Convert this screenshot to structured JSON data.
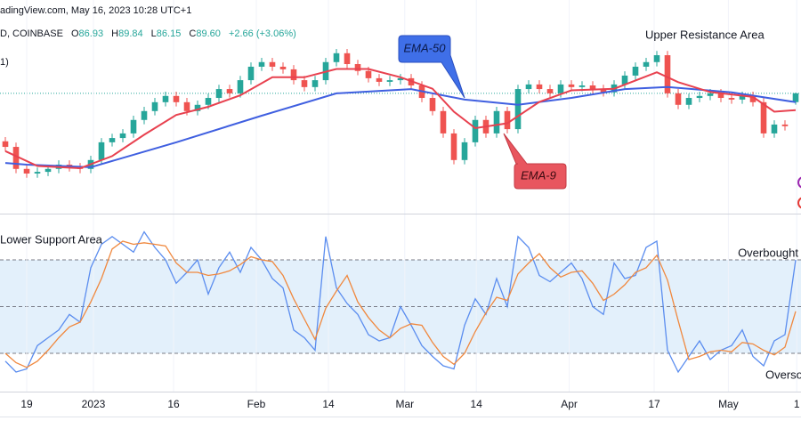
{
  "header": {
    "source": "adingView.com, May 16, 2023 10:28 UTC+1",
    "symbol": "D, COINBASE",
    "ohlc": [
      {
        "key": "O",
        "value": "86.93"
      },
      {
        "key": "H",
        "value": "89.84"
      },
      {
        "key": "L",
        "value": "86.15"
      },
      {
        "key": "C",
        "value": "89.60"
      }
    ],
    "change": "+2.66 (+3.06%)",
    "indicator": "1)"
  },
  "chart_data": [
    {
      "type": "candlestick",
      "xlim": [
        -0.5,
        74.5
      ],
      "ylim": [
        53,
        118
      ],
      "up_color": "#26a69a",
      "down_color": "#ef5350",
      "open": [
        75.0,
        73.3,
        66.6,
        65.2,
        65.7,
        66.6,
        67.9,
        67.1,
        66.6,
        69.3,
        74.7,
        76.0,
        77.4,
        81.5,
        84.2,
        86.9,
        88.8,
        86.9,
        84.2,
        86.1,
        88.2,
        90.9,
        89.6,
        93.6,
        97.7,
        99.1,
        97.7,
        96.9,
        93.6,
        91.5,
        93.6,
        99.1,
        101.8,
        98.5,
        96.4,
        94.2,
        93.1,
        93.6,
        94.2,
        92.0,
        88.2,
        84.2,
        77.4,
        69.3,
        74.7,
        81.5,
        77.4,
        84.2,
        78.7,
        90.9,
        92.3,
        90.9,
        89.6,
        92.3,
        91.5,
        92.0,
        90.9,
        89.9,
        92.3,
        95.0,
        97.7,
        99.1,
        101.2,
        89.6,
        86.1,
        88.2,
        88.8,
        89.6,
        88.2,
        87.7,
        88.8,
        86.9,
        77.4,
        80.1,
        86.93
      ],
      "high": [
        76.3,
        74.6,
        67.9,
        67.0,
        67.9,
        69.2,
        69.2,
        68.4,
        70.6,
        76.0,
        77.3,
        78.7,
        82.8,
        85.5,
        88.2,
        90.1,
        90.1,
        88.2,
        87.4,
        89.5,
        92.2,
        92.2,
        94.9,
        99.0,
        100.4,
        100.4,
        99.0,
        98.2,
        94.9,
        94.9,
        100.4,
        103.1,
        103.1,
        99.8,
        97.7,
        95.5,
        94.9,
        95.5,
        95.5,
        93.3,
        89.5,
        85.5,
        78.7,
        76.0,
        82.8,
        82.8,
        85.5,
        85.5,
        92.2,
        93.6,
        93.6,
        92.2,
        93.6,
        93.6,
        93.3,
        93.3,
        92.2,
        93.6,
        96.3,
        99.0,
        100.4,
        102.5,
        102.5,
        90.9,
        89.5,
        90.1,
        90.9,
        90.9,
        89.5,
        90.1,
        90.1,
        88.2,
        81.4,
        81.4,
        89.84
      ],
      "low": [
        72.0,
        65.3,
        63.9,
        63.9,
        64.4,
        65.3,
        65.8,
        65.3,
        65.3,
        68.0,
        73.4,
        74.7,
        76.1,
        80.2,
        82.9,
        85.6,
        85.6,
        82.9,
        82.9,
        84.8,
        86.9,
        88.3,
        88.3,
        92.3,
        96.4,
        96.4,
        95.6,
        92.3,
        90.2,
        90.2,
        92.3,
        97.8,
        97.2,
        95.1,
        92.9,
        91.8,
        91.8,
        92.3,
        90.7,
        86.9,
        82.9,
        76.1,
        68.0,
        68.0,
        73.4,
        76.1,
        76.1,
        77.4,
        77.4,
        89.6,
        89.6,
        88.3,
        88.3,
        90.2,
        90.2,
        89.6,
        88.6,
        88.6,
        91.0,
        93.7,
        96.4,
        97.8,
        88.3,
        84.8,
        84.8,
        86.9,
        87.5,
        86.9,
        86.4,
        86.4,
        85.6,
        76.1,
        76.1,
        78.3,
        86.15
      ],
      "close": [
        73.3,
        66.6,
        65.2,
        65.7,
        66.6,
        67.9,
        67.1,
        66.6,
        69.3,
        74.7,
        76.0,
        77.4,
        81.5,
        84.2,
        86.9,
        88.8,
        86.9,
        84.2,
        86.1,
        88.2,
        90.9,
        89.6,
        93.6,
        97.7,
        99.1,
        97.7,
        96.9,
        93.6,
        91.5,
        93.6,
        99.1,
        101.8,
        98.5,
        96.4,
        94.2,
        93.1,
        93.6,
        94.2,
        92.0,
        88.2,
        84.2,
        77.4,
        69.3,
        74.7,
        81.5,
        77.4,
        84.2,
        78.7,
        90.9,
        92.3,
        90.9,
        89.6,
        92.3,
        91.5,
        92.0,
        90.9,
        89.9,
        92.3,
        95.0,
        97.7,
        99.1,
        101.2,
        89.6,
        86.1,
        88.2,
        88.8,
        89.6,
        88.2,
        87.7,
        88.8,
        86.9,
        77.4,
        80.1,
        79.6,
        89.6
      ],
      "lines": [
        {
          "name": "EMA-50",
          "color": "#3f5fe0",
          "x": [
            0,
            2,
            8,
            16,
            24,
            31,
            38,
            43,
            48,
            53,
            58,
            62,
            68,
            74
          ],
          "values": [
            68.4,
            67.9,
            67.1,
            74.7,
            82.8,
            89.6,
            90.9,
            87.7,
            86.1,
            88.2,
            90.9,
            91.5,
            89.9,
            86.9
          ]
        },
        {
          "name": "EMA-9",
          "color": "#e8414f",
          "x": [
            0,
            3,
            7,
            10,
            13,
            16,
            19,
            22,
            25,
            28,
            31,
            34,
            37,
            40,
            42,
            44,
            47,
            50,
            53,
            57,
            61,
            63,
            66,
            70,
            72,
            74
          ],
          "values": [
            72,
            67.5,
            66.8,
            70.5,
            77,
            83,
            85.5,
            89,
            94.5,
            94.5,
            97,
            97,
            94.5,
            91,
            84,
            79,
            80.5,
            87,
            90.5,
            91,
            96,
            93,
            90,
            88.5,
            84,
            84.5
          ]
        }
      ],
      "annotations": [
        "Upper Resistance Area"
      ]
    },
    {
      "type": "line",
      "xlim": [
        -0.5,
        74.5
      ],
      "ylim": [
        0,
        100
      ],
      "levels": [
        80,
        50,
        20
      ],
      "band_color": "#e3f0fb",
      "series": [
        {
          "color": "#5b8def",
          "values": [
            15,
            8,
            10,
            25,
            30,
            35,
            45,
            40,
            75,
            90,
            95,
            90,
            85,
            98,
            88,
            80,
            65,
            72,
            80,
            58,
            75,
            85,
            72,
            88,
            80,
            68,
            62,
            35,
            30,
            22,
            95,
            62,
            52,
            45,
            32,
            28,
            30,
            50,
            38,
            25,
            18,
            12,
            10,
            38,
            55,
            45,
            68,
            50,
            95,
            88,
            70,
            66,
            72,
            78,
            68,
            50,
            45,
            78,
            68,
            70,
            88,
            92,
            22,
            8,
            18,
            28,
            16,
            22,
            25,
            35,
            18,
            12,
            28,
            32,
            80
          ]
        },
        {
          "color": "#f0883e",
          "values": [
            20,
            14,
            11,
            15,
            22,
            30,
            37,
            40,
            53,
            68,
            87,
            92,
            90,
            91,
            90,
            89,
            78,
            72,
            72,
            70,
            71,
            73,
            77,
            82,
            80,
            79,
            70,
            55,
            42,
            29,
            49,
            60,
            70,
            53,
            43,
            35,
            30,
            36,
            39,
            38,
            27,
            18,
            13,
            20,
            34,
            46,
            56,
            54,
            71,
            78,
            84,
            75,
            69,
            72,
            73,
            65,
            54,
            58,
            64,
            72,
            75,
            83,
            67,
            41,
            16,
            18,
            21,
            22,
            21,
            27,
            26,
            22,
            19,
            24,
            47
          ]
        }
      ],
      "annotations": [
        "Lower Support Area",
        "Overbought",
        "Overso"
      ],
      "xticks": [
        {
          "value": 2,
          "label": "19"
        },
        {
          "value": 8.25,
          "label": "2023"
        },
        {
          "value": 15.75,
          "label": "16"
        },
        {
          "value": 23.5,
          "label": "Feb"
        },
        {
          "value": 30.25,
          "label": "14"
        },
        {
          "value": 37.4,
          "label": "Mar"
        },
        {
          "value": 44.1,
          "label": "14"
        },
        {
          "value": 52.8,
          "label": "Apr"
        },
        {
          "value": 60.75,
          "label": "17"
        },
        {
          "value": 67.7,
          "label": "May"
        },
        {
          "value": 74.1,
          "label": "1"
        }
      ]
    }
  ]
}
